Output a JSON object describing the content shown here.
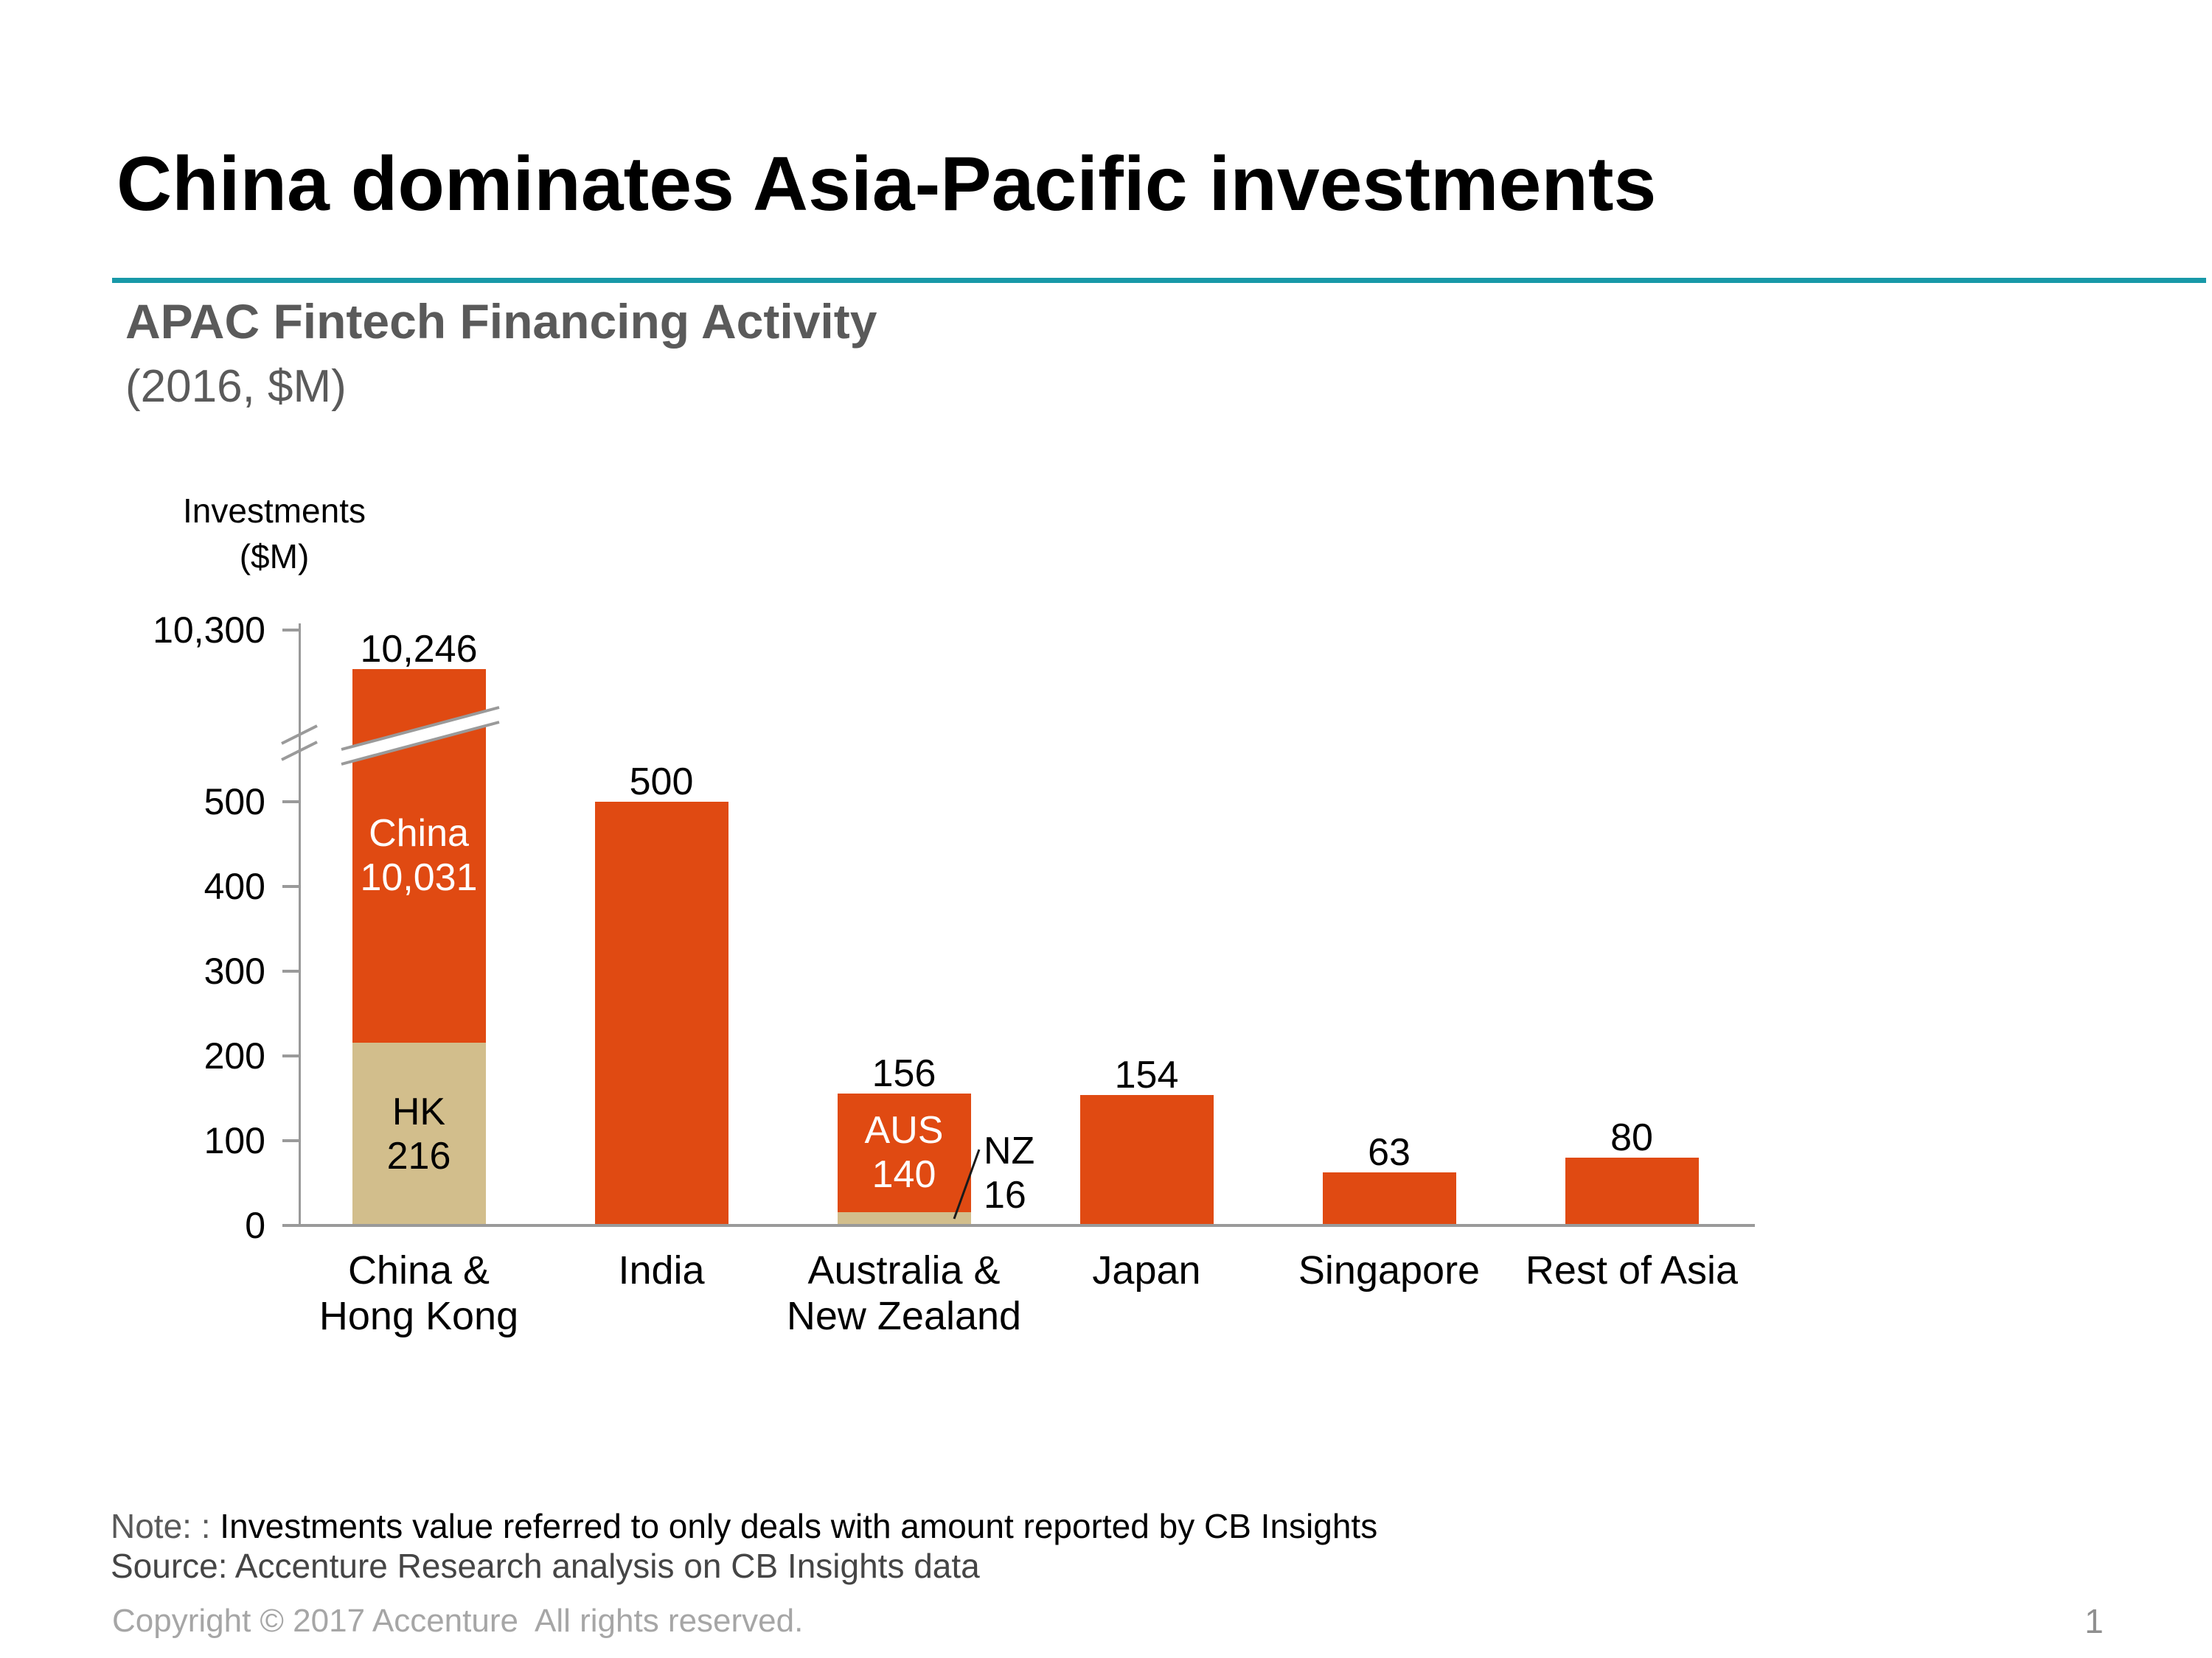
{
  "slide": {
    "title": "China dominates Asia-Pacific investments",
    "page_number": "1"
  },
  "chart": {
    "heading": "APAC Fintech Financing Activity",
    "heading_sub": "(2016, $M)",
    "axis_title_line1": "Investments",
    "axis_title_line2": "($M)"
  },
  "footer": {
    "note_label": "Note: :",
    "note_text": " Investments value referred to only deals with amount reported by CB Insights",
    "source": "Source: Accenture Research analysis on CB Insights data",
    "copyright": "Copyright © 2017 Accenture  All rights reserved."
  },
  "colors": {
    "orange": "#E04A12",
    "tan": "#D2BE8C",
    "teal": "#1899A8",
    "axis_gray": "#9A9A9A"
  },
  "chart_data": {
    "type": "bar",
    "title": "APAC Fintech Financing Activity",
    "subtitle": "(2016, $M)",
    "ylabel": "Investments ($M)",
    "unit": "$M",
    "year": "2016",
    "axis_break_between": [
      500,
      10300
    ],
    "legend": "none",
    "grid": "off",
    "yticks": [
      {
        "label": "10,300",
        "value": 10300
      },
      {
        "label": "500",
        "value": 500
      },
      {
        "label": "400",
        "value": 400
      },
      {
        "label": "300",
        "value": 300
      },
      {
        "label": "200",
        "value": 200
      },
      {
        "label": "100",
        "value": 100
      },
      {
        "label": "0",
        "value": 0
      }
    ],
    "bars": [
      {
        "category_lines": [
          "China &",
          "Hong Kong"
        ],
        "total": 10246,
        "total_label": "10,246",
        "over_break": true,
        "segments": [
          {
            "name": "HK",
            "value": 216,
            "color": "tan",
            "label_lines": [
              "HK",
              "216"
            ],
            "label_color": "#000000"
          },
          {
            "name": "China",
            "value": 10031,
            "color": "orange",
            "label_lines": [
              "China",
              "10,031"
            ],
            "label_color": "#FFFFFF"
          }
        ]
      },
      {
        "category_lines": [
          "India"
        ],
        "total": 500,
        "total_label": "500",
        "segments": [
          {
            "name": "India",
            "value": 500,
            "color": "orange"
          }
        ]
      },
      {
        "category_lines": [
          "Australia &",
          "New Zealand"
        ],
        "total": 156,
        "total_label": "156",
        "segments": [
          {
            "name": "NZ",
            "value": 16,
            "color": "tan",
            "callout_lines": [
              "NZ",
              "16"
            ]
          },
          {
            "name": "AUS",
            "value": 140,
            "color": "orange",
            "label_lines": [
              "AUS",
              "140"
            ],
            "label_color": "#FFFFFF"
          }
        ]
      },
      {
        "category_lines": [
          "Japan"
        ],
        "total": 154,
        "total_label": "154",
        "segments": [
          {
            "name": "Japan",
            "value": 154,
            "color": "orange"
          }
        ]
      },
      {
        "category_lines": [
          "Singapore"
        ],
        "total": 63,
        "total_label": "63",
        "segments": [
          {
            "name": "Singapore",
            "value": 63,
            "color": "orange"
          }
        ]
      },
      {
        "category_lines": [
          "Rest of Asia"
        ],
        "total": 80,
        "total_label": "80",
        "segments": [
          {
            "name": "Rest of Asia",
            "value": 80,
            "color": "orange"
          }
        ]
      }
    ]
  }
}
